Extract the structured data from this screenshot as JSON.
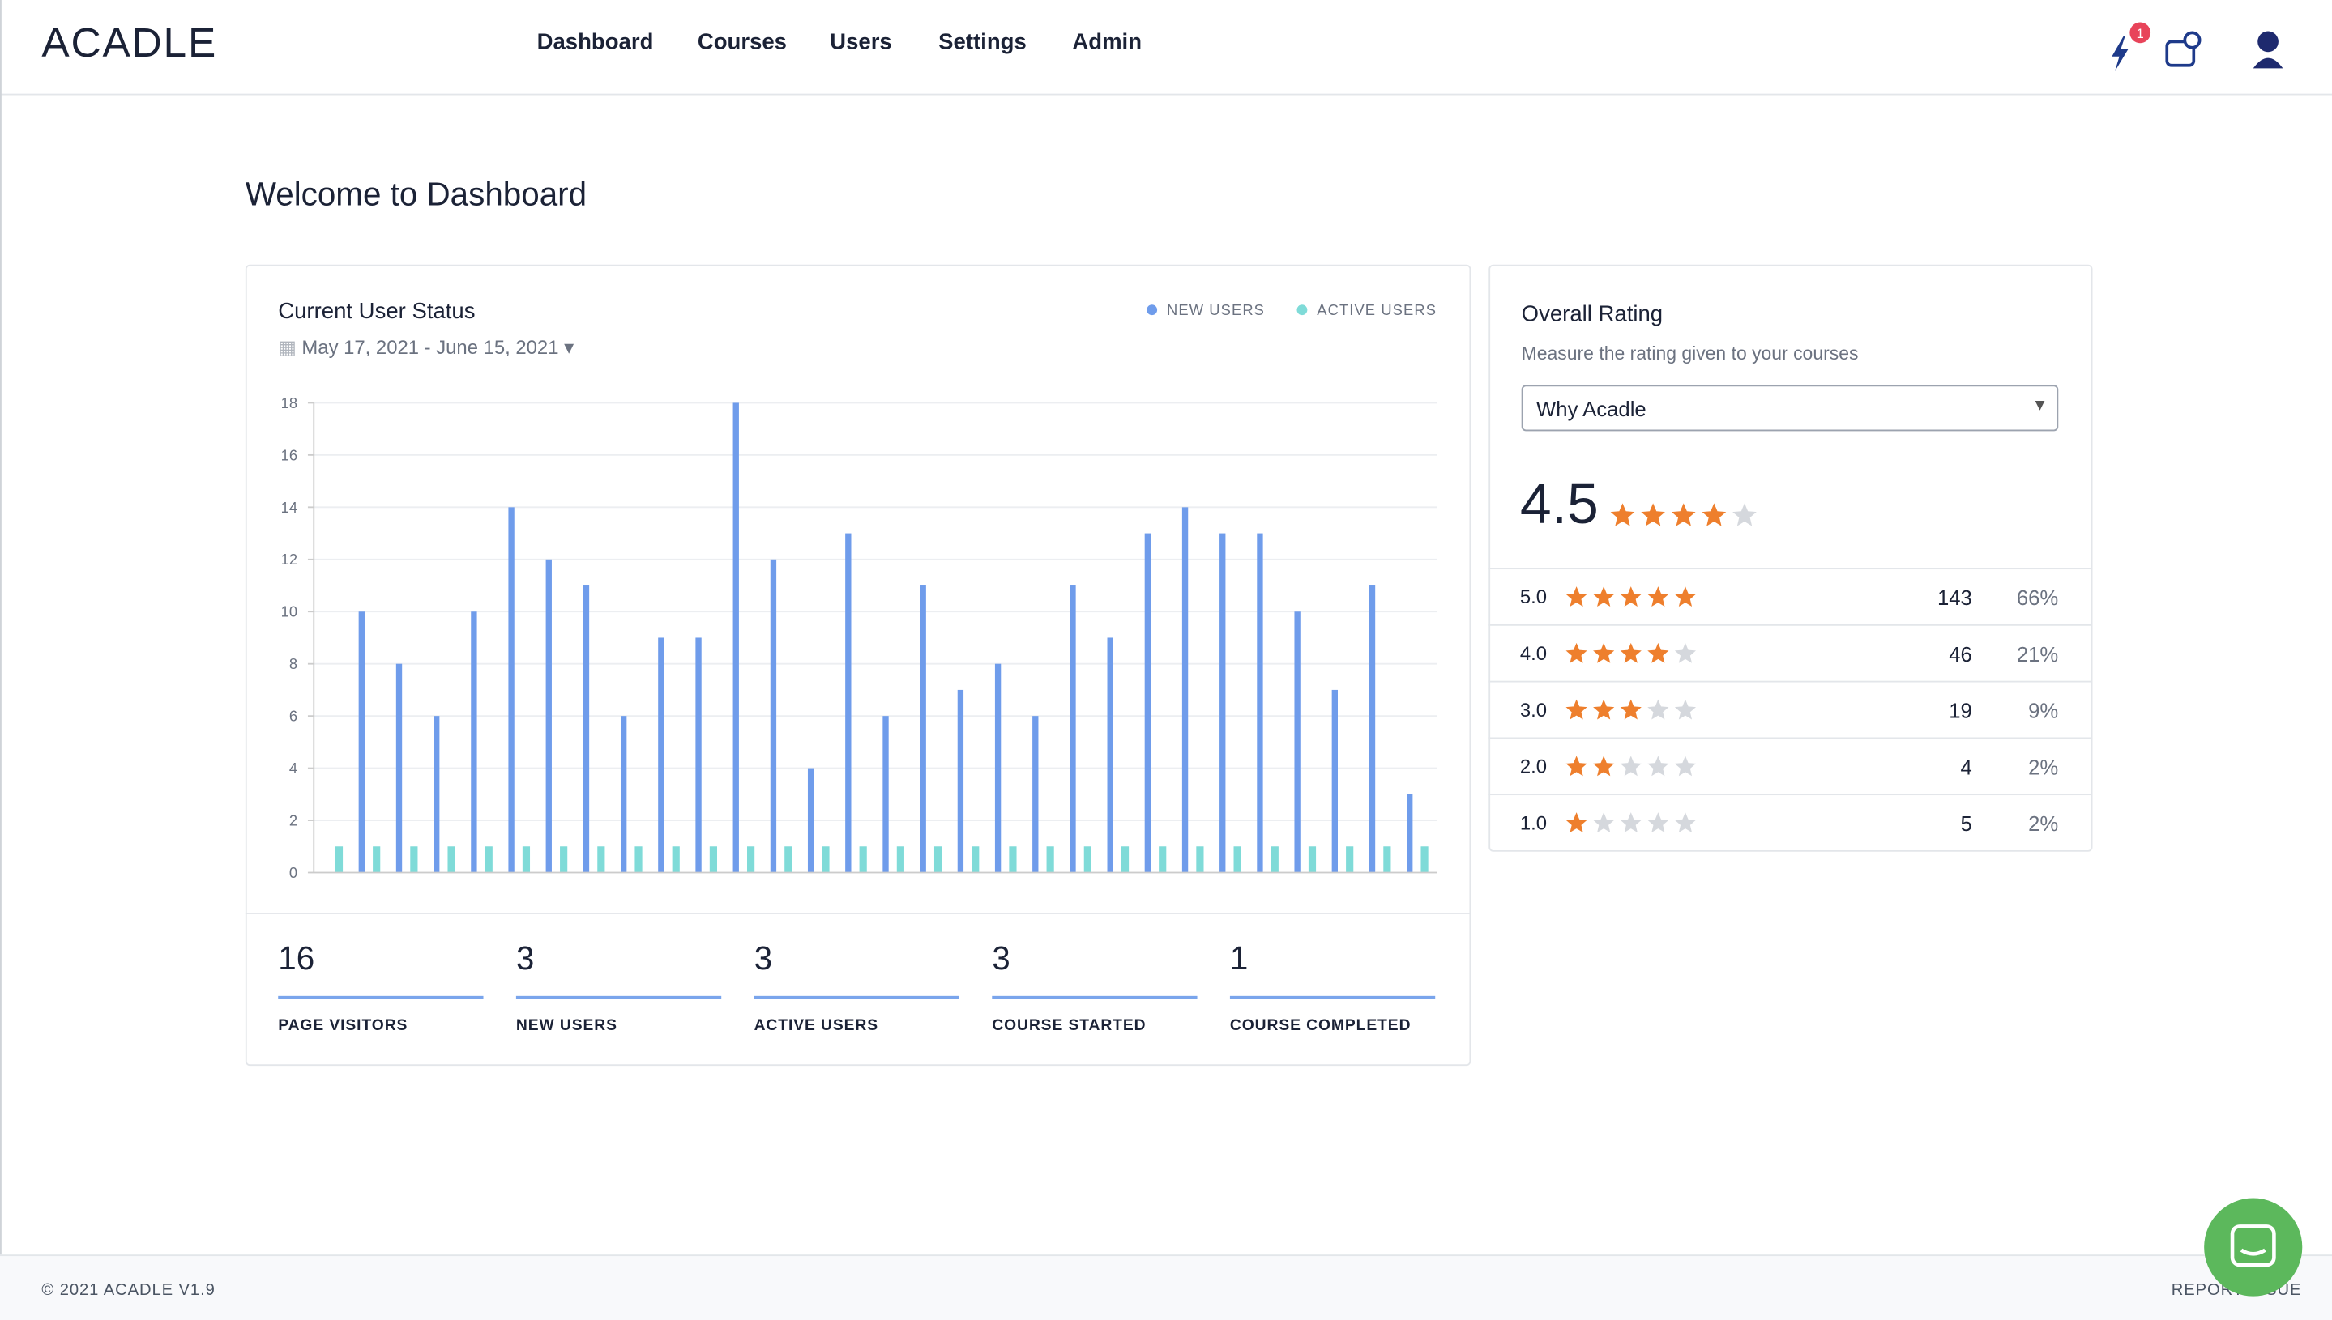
{
  "nav": {
    "logo": "ACADLE",
    "items": [
      "Dashboard",
      "Courses",
      "Users",
      "Settings",
      "Admin"
    ],
    "badge": "1"
  },
  "page_title": "Welcome to Dashboard",
  "status_card": {
    "title": "Current User Status",
    "date_range": "May 17, 2021 - June 15, 2021",
    "stats": [
      {
        "value": 16,
        "label": "PAGE VISITORS"
      },
      {
        "value": 3,
        "label": "NEW USERS"
      },
      {
        "value": 3,
        "label": "ACTIVE USERS"
      },
      {
        "value": 3,
        "label": "COURSE STARTED"
      },
      {
        "value": 1,
        "label": "COURSE COMPLETED"
      }
    ]
  },
  "chart_data": {
    "type": "bar",
    "ylim": [
      0,
      18
    ],
    "yticks": [
      0,
      2,
      4,
      6,
      8,
      10,
      12,
      14,
      16,
      18
    ],
    "grid": true,
    "legend": "top-right",
    "series": [
      {
        "name": "NEW USERS",
        "color": "#6f9ceb",
        "values": [
          0,
          10,
          8,
          6,
          10,
          14,
          12,
          11,
          6,
          9,
          9,
          18,
          12,
          4,
          13,
          6,
          11,
          7,
          8,
          6,
          11,
          9,
          13,
          14,
          13,
          13,
          10,
          7,
          11,
          3
        ]
      },
      {
        "name": "ACTIVE USERS",
        "color": "#7fdbd8",
        "values": [
          1,
          1,
          1,
          1,
          1,
          1,
          1,
          1,
          1,
          1,
          1,
          1,
          1,
          1,
          1,
          1,
          1,
          1,
          1,
          1,
          1,
          1,
          1,
          1,
          1,
          1,
          1,
          1,
          1,
          1
        ]
      }
    ]
  },
  "rating_card": {
    "title": "Overall Rating",
    "subtitle": "Measure the rating given to your courses",
    "select": "Why Acadle",
    "score": 4.5,
    "rows": [
      {
        "label": "5.0",
        "stars": 5,
        "count": 143,
        "percent": "66%"
      },
      {
        "label": "4.0",
        "stars": 4,
        "count": 46,
        "percent": "21%"
      },
      {
        "label": "3.0",
        "stars": 3,
        "count": 19,
        "percent": "9%"
      },
      {
        "label": "2.0",
        "stars": 2,
        "count": 4,
        "percent": "2%"
      },
      {
        "label": "1.0",
        "stars": 1,
        "count": 5,
        "percent": "2%"
      }
    ]
  },
  "footer": {
    "copyright": "© 2021 ACADLE V1.9",
    "report": "REPORT ISSUE"
  }
}
